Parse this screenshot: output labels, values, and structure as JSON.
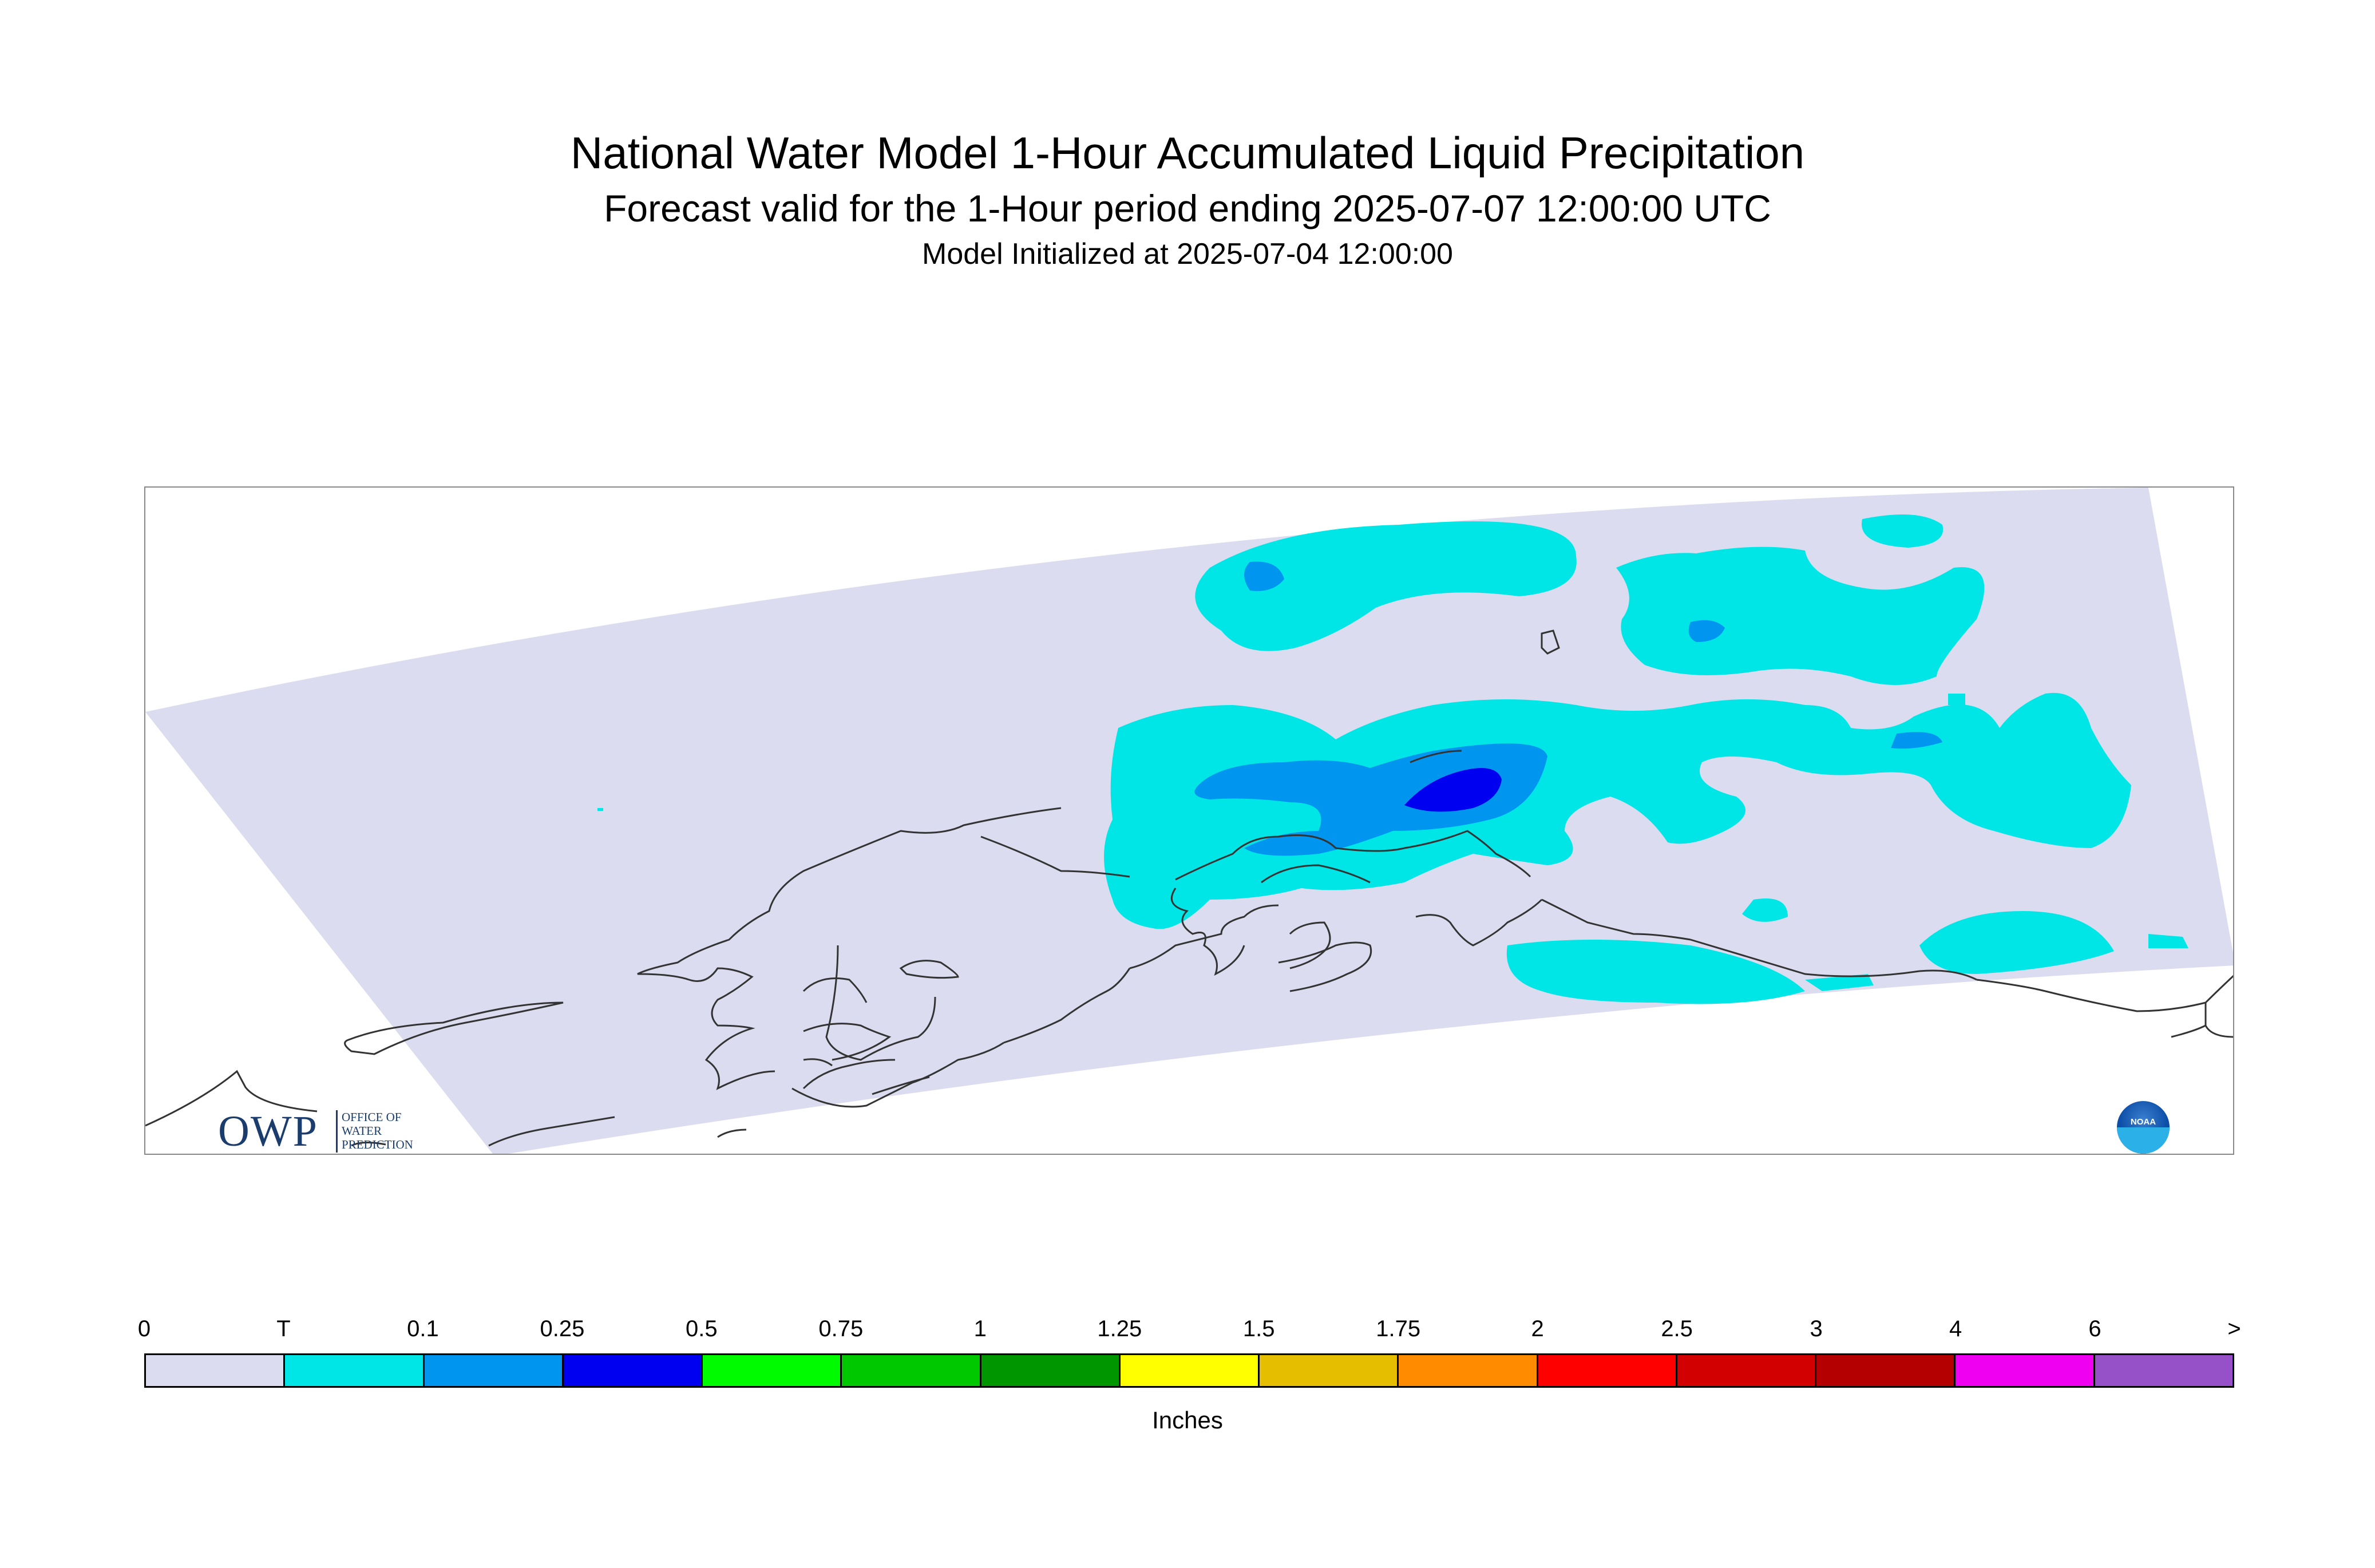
{
  "title": "National Water Model 1-Hour Accumulated Liquid Precipitation",
  "subtitle": "Forecast valid for the 1-Hour period ending 2025-07-07 12:00:00 UTC",
  "initialized": "Model Initialized at 2025-07-04 12:00:00",
  "logos": {
    "owp_main": "OWP",
    "owp_sub": "OFFICE OF\nWATER\nPREDICTION",
    "noaa_text": "NOAA"
  },
  "colorbar": {
    "labels": [
      "0",
      "T",
      "0.1",
      "0.25",
      "0.5",
      "0.75",
      "1",
      "1.25",
      "1.5",
      "1.75",
      "2",
      "2.5",
      "3",
      "4",
      "6",
      ">"
    ],
    "colors": [
      "#dcdcf0",
      "#00e6e6",
      "#0096f0",
      "#0000f0",
      "#00fa00",
      "#00c800",
      "#009600",
      "#ffff00",
      "#e6be00",
      "#ff8c00",
      "#ff0000",
      "#d20000",
      "#b40000",
      "#f000f0",
      "#9650c8"
    ],
    "units": "Inches"
  },
  "map_colors": {
    "domain": "#dcdcf0",
    "trace": "#00e6e6",
    "light": "#0096f0",
    "heavy": "#0000f0",
    "coast": "#333333"
  }
}
